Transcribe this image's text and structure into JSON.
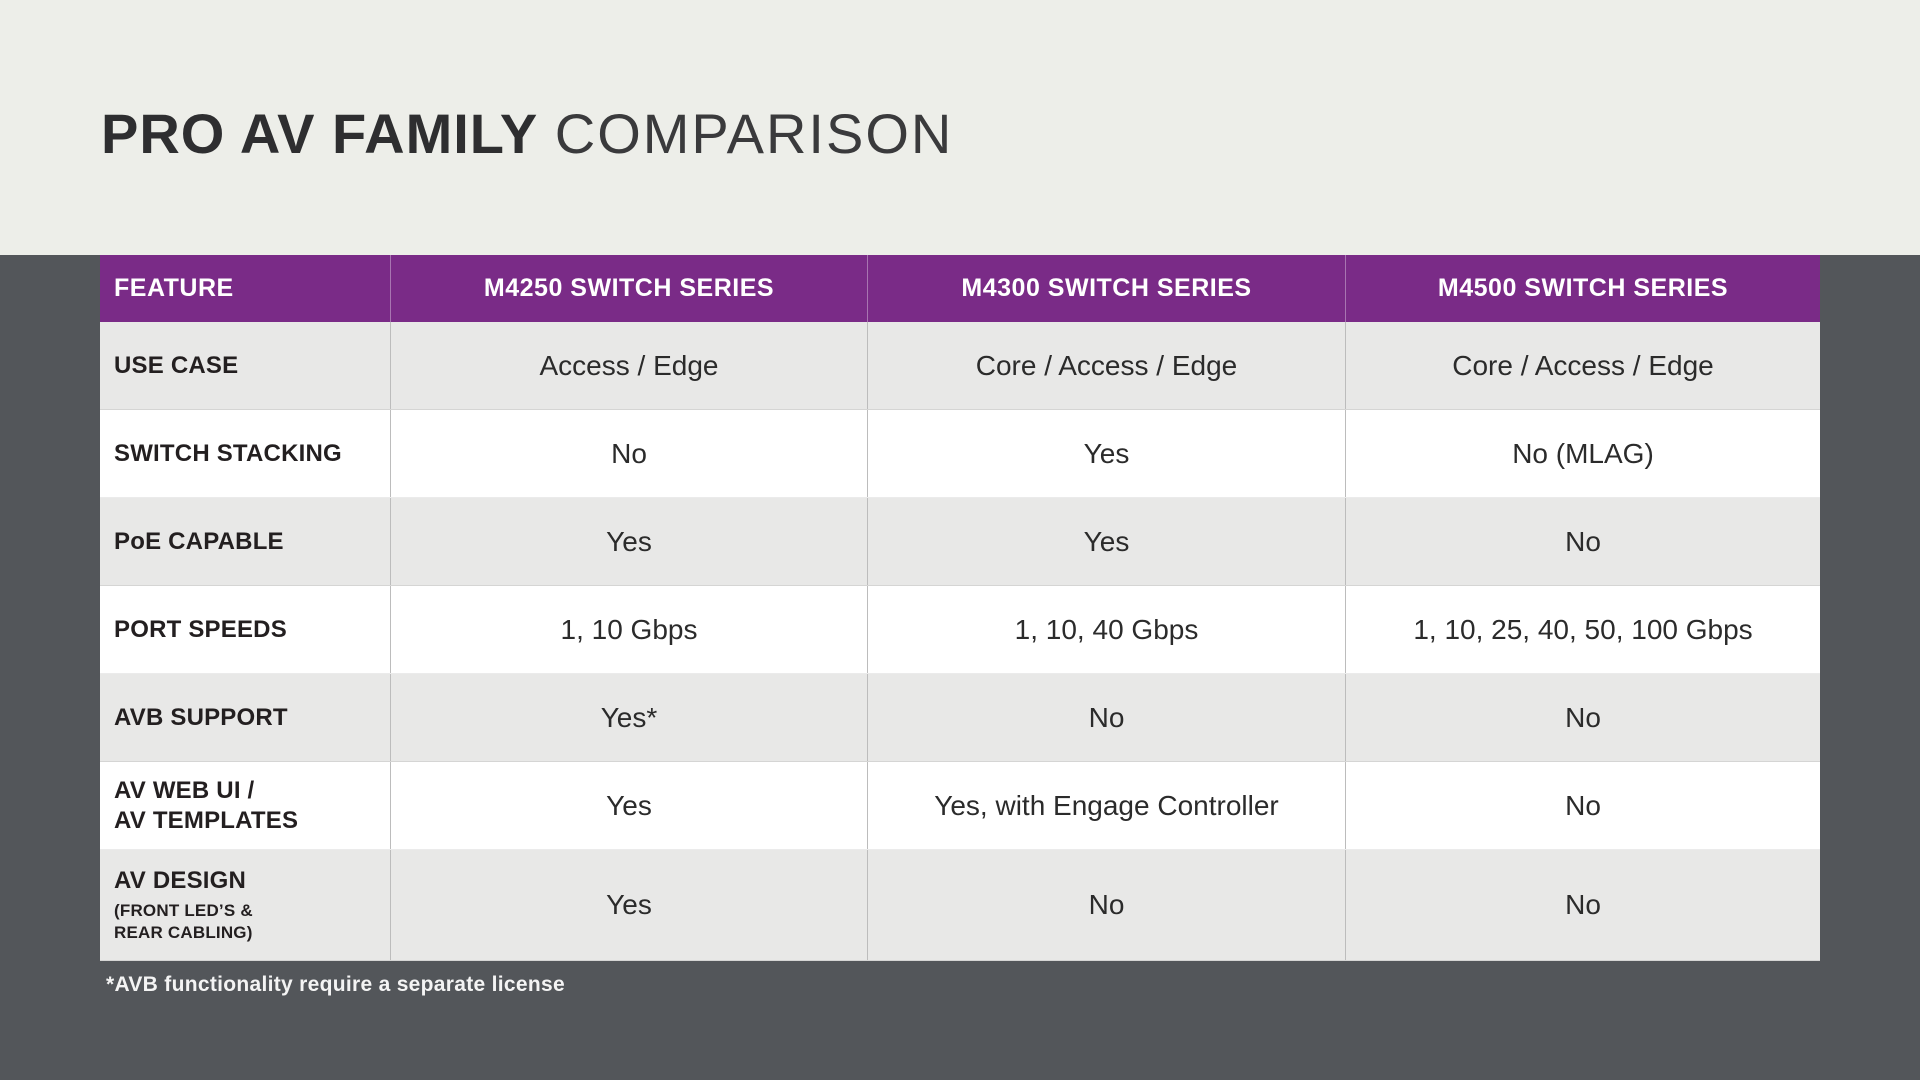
{
  "title": {
    "primary": "PRO AV FAMILY",
    "secondary": "COMPARISON"
  },
  "colors": {
    "header_purple": "#7a2b87",
    "dark_background": "#53565a",
    "top_background": "#edeee9",
    "row_alt_gray": "#e8e8e7",
    "row_white": "#ffffff",
    "text_dark": "#2b2b2b"
  },
  "table": {
    "columns": [
      "FEATURE",
      "M4250 SWITCH SERIES",
      "M4300 SWITCH SERIES",
      "M4500 SWITCH SERIES"
    ],
    "rows": [
      {
        "feature": "USE CASE",
        "values": [
          "Access / Edge",
          "Core / Access / Edge",
          "Core / Access / Edge"
        ]
      },
      {
        "feature": "SWITCH STACKING",
        "values": [
          "No",
          "Yes",
          "No (MLAG)"
        ]
      },
      {
        "feature": "PoE CAPABLE",
        "values": [
          "Yes",
          "Yes",
          "No"
        ]
      },
      {
        "feature": "PORT SPEEDS",
        "values": [
          "1, 10 Gbps",
          "1, 10, 40 Gbps",
          "1, 10, 25, 40, 50, 100 Gbps"
        ]
      },
      {
        "feature": "AVB SUPPORT",
        "values": [
          "Yes*",
          "No",
          "No"
        ]
      },
      {
        "feature": "AV WEB UI /\nAV TEMPLATES",
        "values": [
          "Yes",
          "Yes, with Engage Controller",
          "No"
        ]
      },
      {
        "feature": "AV DESIGN",
        "feature_sub": "(FRONT LED’S &\nREAR CABLING)",
        "values": [
          "Yes",
          "No",
          "No"
        ]
      }
    ],
    "footnote": "*AVB functionality require a separate license"
  }
}
